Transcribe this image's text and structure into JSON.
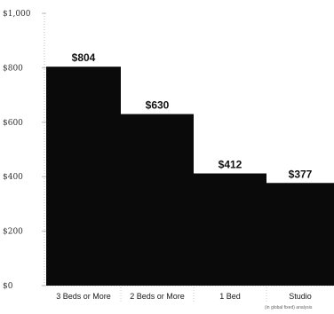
{
  "chart_data": {
    "type": "bar",
    "title": "",
    "xlabel": "",
    "ylabel": "",
    "categories": [
      "3 Beds or More",
      "2 Beds or More",
      "1 Bed",
      "Studio"
    ],
    "values": [
      804,
      630,
      412,
      377
    ],
    "data_labels": [
      "$804",
      "$630",
      "$412",
      "$377"
    ],
    "yticks": [
      0,
      200,
      400,
      600,
      800,
      1000
    ],
    "ytick_labels": [
      "$0",
      "$200",
      "$400",
      "$600",
      "$800",
      "$1,000"
    ],
    "ylim": [
      0,
      1000
    ],
    "bar_color": "#0a0a0a",
    "grid": false,
    "legend": "none",
    "note": "(in global fixed) analysis"
  }
}
